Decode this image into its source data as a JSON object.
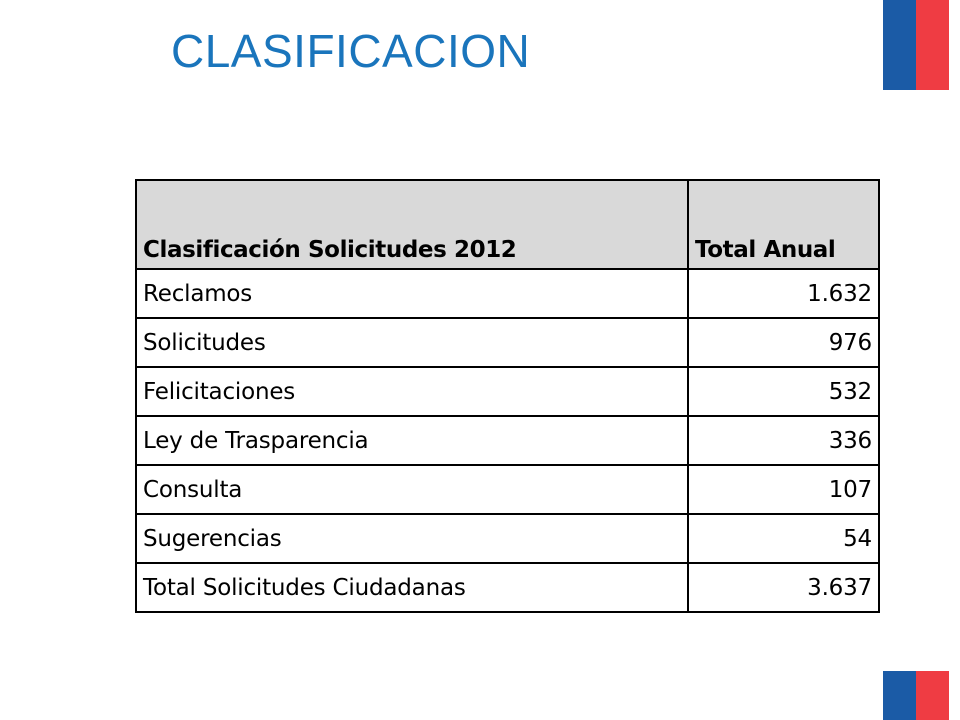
{
  "slide": {
    "title": "CLASIFICACION"
  },
  "colors": {
    "title": "#1a75bc",
    "header_fill": "#d9d9d9",
    "flag_blue": "#1b5ba6",
    "flag_red": "#ef3c43"
  },
  "table": {
    "headers": [
      "Clasificación Solicitudes 2012",
      "Total Anual"
    ],
    "rows": [
      {
        "label": "Reclamos",
        "value": "1.632"
      },
      {
        "label": "Solicitudes",
        "value": "976"
      },
      {
        "label": "Felicitaciones",
        "value": "532"
      },
      {
        "label": "Ley de Trasparencia",
        "value": "336"
      },
      {
        "label": "Consulta",
        "value": "107"
      },
      {
        "label": "Sugerencias",
        "value": "54"
      },
      {
        "label": "Total Solicitudes Ciudadanas",
        "value": "3.637"
      }
    ]
  },
  "decorations": {
    "top_flag_icon": "chile-flag-stripes-icon",
    "bottom_flag_icon": "chile-flag-stripes-icon"
  }
}
